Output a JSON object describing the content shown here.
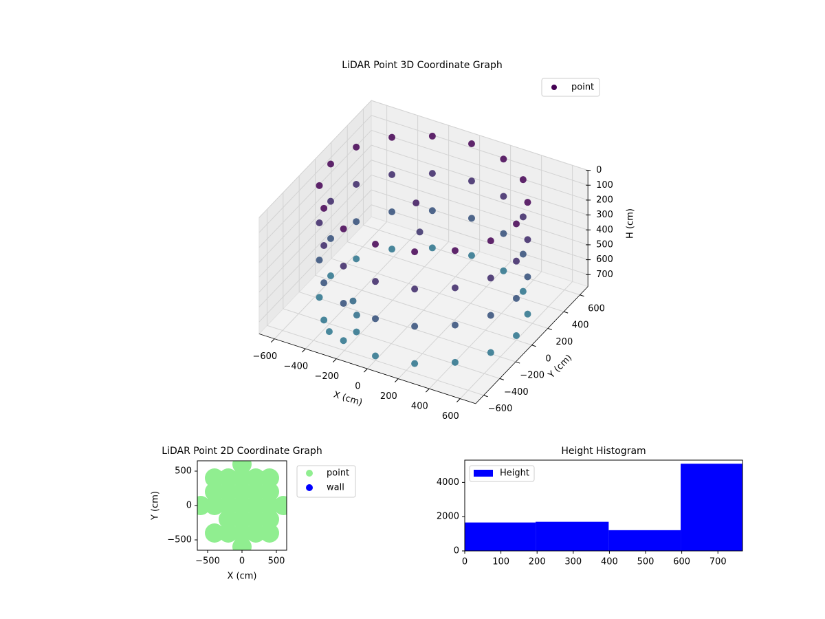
{
  "chart_data": [
    {
      "type": "scatter3d",
      "title": "LiDAR Point 3D Coordinate Graph",
      "xlabel": "X (cm)",
      "ylabel": "Y (cm)",
      "zlabel": "H (cm)",
      "xlim": [
        -700,
        700
      ],
      "ylim": [
        -700,
        700
      ],
      "zlim": [
        0,
        780
      ],
      "zaxis_inverted": true,
      "xticks": [
        {
          "value": -600,
          "label": "−600"
        },
        {
          "value": -400,
          "label": "−400"
        },
        {
          "value": -200,
          "label": "−200"
        },
        0,
        200,
        400,
        600
      ],
      "yticks": [
        {
          "value": -600,
          "label": "−600"
        },
        {
          "value": -400,
          "label": "−400"
        },
        {
          "value": -200,
          "label": "−200"
        },
        0,
        200,
        400,
        600
      ],
      "zticks": [
        0,
        100,
        200,
        300,
        400,
        500,
        600,
        700
      ],
      "colormap": [
        "#440154",
        "#2a788e"
      ],
      "grid": true,
      "series": [
        {
          "name": "point",
          "color": "#440154",
          "x": [
            600,
            554,
            424,
            230,
            0,
            -230,
            -424,
            -554,
            -600,
            -554,
            -424,
            -230,
            0,
            230,
            424,
            554,
            600,
            554,
            424,
            230,
            0,
            -230,
            -424,
            -554,
            -600,
            -554,
            -424,
            -230,
            0,
            230,
            424,
            554,
            600,
            554,
            424,
            230,
            0,
            -230,
            -424,
            -554,
            -600,
            -554,
            -424,
            -230,
            0,
            230,
            424,
            554,
            600,
            554,
            424,
            230,
            0,
            -230,
            -424,
            -554,
            -600,
            -554,
            -424,
            -230,
            0,
            230,
            424,
            554,
            -250,
            -200,
            -300,
            -100,
            -50,
            -350
          ],
          "y": [
            0,
            230,
            424,
            554,
            600,
            554,
            424,
            230,
            0,
            -230,
            -424,
            -554,
            -600,
            -554,
            -424,
            -230,
            0,
            230,
            424,
            554,
            600,
            554,
            424,
            230,
            0,
            -230,
            -424,
            -554,
            -600,
            -554,
            -424,
            -230,
            0,
            230,
            424,
            554,
            600,
            554,
            424,
            230,
            0,
            -230,
            -424,
            -554,
            -600,
            -554,
            -424,
            -230,
            0,
            230,
            424,
            554,
            600,
            554,
            424,
            230,
            0,
            -230,
            -424,
            -554,
            -600,
            -554,
            -424,
            -230,
            -350,
            -450,
            -300,
            100,
            50,
            -500
          ],
          "z": [
            0,
            0,
            0,
            0,
            0,
            0,
            0,
            0,
            0,
            0,
            0,
            0,
            0,
            0,
            0,
            0,
            250,
            250,
            250,
            250,
            250,
            250,
            250,
            250,
            250,
            250,
            250,
            250,
            250,
            250,
            250,
            250,
            500,
            500,
            500,
            500,
            500,
            500,
            500,
            500,
            500,
            500,
            500,
            500,
            500,
            500,
            500,
            500,
            750,
            750,
            750,
            750,
            750,
            750,
            750,
            750,
            750,
            750,
            750,
            750,
            750,
            750,
            750,
            750,
            700,
            740,
            650,
            150,
            300,
            760
          ]
        }
      ]
    },
    {
      "type": "scatter",
      "title": "LiDAR Point 2D Coordinate Graph",
      "xlabel": "X (cm)",
      "ylabel": "Y (cm)",
      "xlim": [
        -650,
        650
      ],
      "ylim": [
        -650,
        650
      ],
      "xticks": [
        {
          "value": -500,
          "label": "−500"
        },
        0,
        500
      ],
      "yticks": [
        {
          "value": -500,
          "label": "−500"
        },
        0,
        500
      ],
      "series": [
        {
          "name": "point",
          "color": "#90ee90",
          "x": [
            0,
            0,
            0,
            0,
            0,
            0,
            0,
            200,
            200,
            200,
            200,
            200,
            -200,
            -200,
            -200,
            -200,
            -200,
            400,
            400,
            400,
            400,
            400,
            -400,
            -400,
            -400,
            -400,
            600,
            -600
          ],
          "y": [
            -600,
            -400,
            -200,
            0,
            200,
            400,
            600,
            -400,
            -200,
            0,
            200,
            400,
            -400,
            -200,
            0,
            200,
            400,
            -400,
            -200,
            0,
            200,
            400,
            -400,
            0,
            200,
            400,
            0,
            0
          ]
        },
        {
          "name": "wall",
          "color": "#0000ff",
          "x": [],
          "y": []
        }
      ]
    },
    {
      "type": "histogram",
      "title": "Height Histogram",
      "bins": [
        0,
        196,
        398,
        597,
        768
      ],
      "values": [
        1660,
        1700,
        1210,
        5090
      ],
      "name": "Height",
      "color": "#0000ff",
      "xlim": [
        0,
        768
      ],
      "ylim": [
        0,
        5300
      ],
      "xticks": [
        0,
        100,
        200,
        300,
        400,
        500,
        600,
        700
      ],
      "yticks": [
        0,
        2000,
        4000
      ]
    }
  ]
}
